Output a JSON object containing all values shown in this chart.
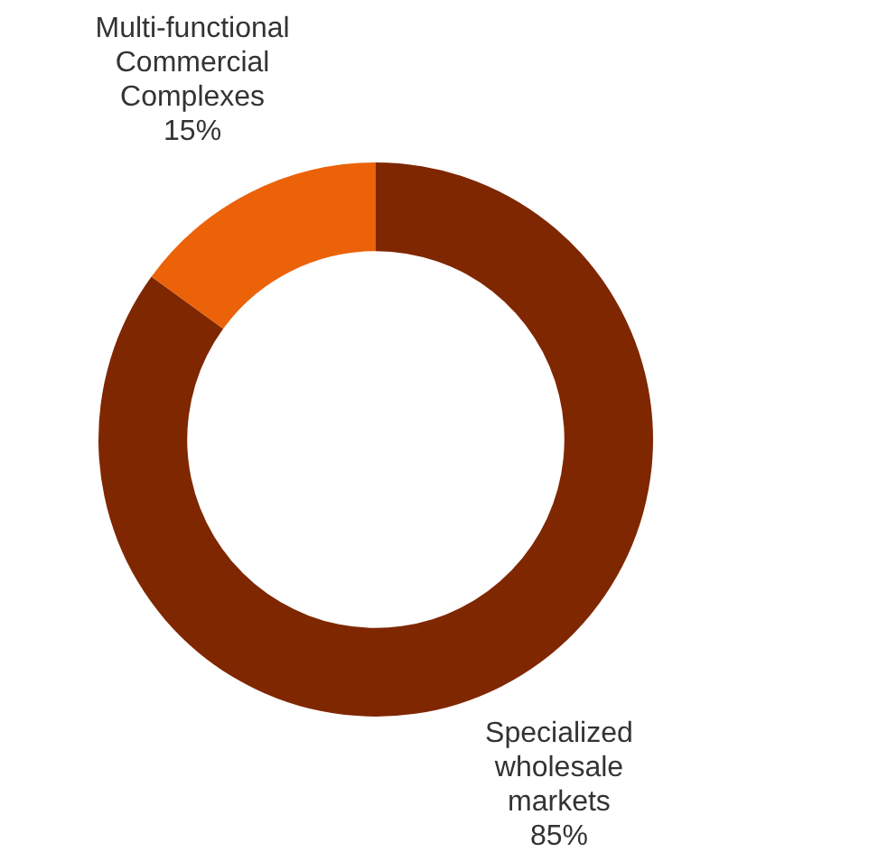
{
  "chart_data": {
    "type": "donut",
    "categories": [
      "Specialized wholesale markets",
      "Multi-functional Commercial Complexes"
    ],
    "values": [
      85,
      15
    ],
    "colors": [
      "#7f2700",
      "#eb6209"
    ],
    "value_labels": [
      "85%",
      "15%"
    ],
    "legend": false
  }
}
